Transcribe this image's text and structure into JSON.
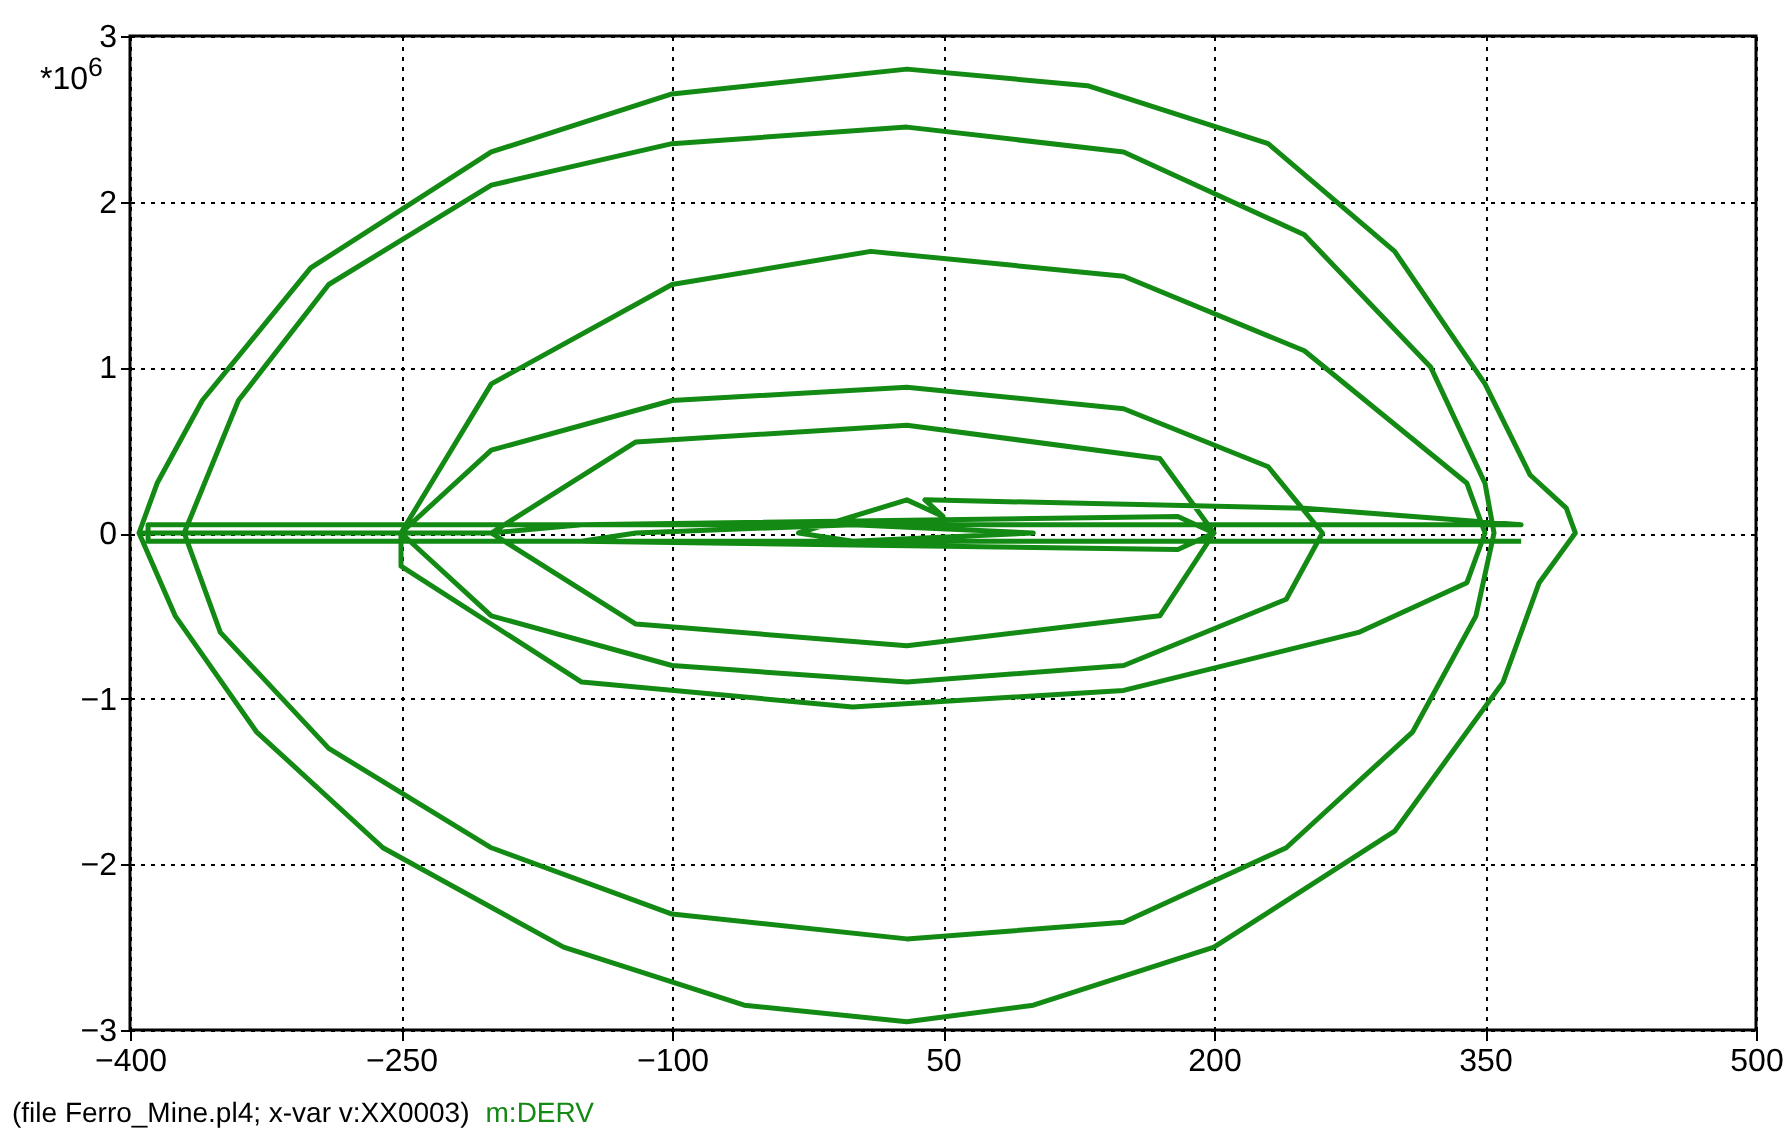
{
  "chart_data": {
    "type": "line",
    "annotations": [
      "*10$^{6}$",
      "(file Ferro_Mine.pl4; x-var v:XX0003)"
    ],
    "xlim": [
      -400,
      500
    ],
    "xticks": [
      -400,
      -250,
      -100,
      50,
      200,
      350,
      500
    ],
    "ylim": [
      -3,
      3
    ],
    "yticks": [
      -3,
      -2,
      -1,
      0,
      1,
      2,
      3
    ],
    "grid": true,
    "line_style": "solid",
    "legend": "bottom left",
    "series": [
      {
        "name": "m:DERV",
        "color": "#138a13",
        "x": [
          -395,
          -385,
          -360,
          -300,
          -200,
          -100,
          30,
          130,
          230,
          300,
          350,
          375,
          395,
          400,
          380,
          360,
          300,
          200,
          100,
          30,
          -60,
          -160,
          -260,
          -330,
          -375,
          -395,
          -370,
          -340,
          -290,
          -200,
          -100,
          30,
          150,
          250,
          320,
          350,
          355,
          345,
          310,
          240,
          150,
          30,
          -100,
          -200,
          -290,
          -350,
          -370,
          -250,
          -200,
          -100,
          10,
          150,
          250,
          340,
          350,
          340,
          280,
          150,
          0,
          -150,
          -250,
          -250,
          -200,
          -100,
          30,
          150,
          230,
          260,
          240,
          150,
          30,
          -100,
          -200,
          -250,
          -200,
          -120,
          30,
          170,
          200,
          170,
          30,
          -120,
          -200,
          -150,
          180,
          200,
          180,
          -150,
          -120,
          0,
          100,
          0,
          -30,
          30,
          50,
          40,
          250,
          370,
          -390,
          -390,
          370
        ],
        "values": [
          0,
          0.3,
          0.8,
          1.6,
          2.3,
          2.65,
          2.8,
          2.7,
          2.35,
          1.7,
          0.9,
          0.35,
          0.15,
          0,
          -0.3,
          -0.9,
          -1.8,
          -2.5,
          -2.85,
          -2.95,
          -2.85,
          -2.5,
          -1.9,
          -1.2,
          -0.5,
          0,
          0,
          0.8,
          1.5,
          2.1,
          2.35,
          2.45,
          2.3,
          1.8,
          1,
          0.3,
          0,
          -0.5,
          -1.2,
          -1.9,
          -2.35,
          -2.45,
          -2.3,
          -1.9,
          -1.3,
          -0.6,
          0,
          0,
          0.9,
          1.5,
          1.7,
          1.55,
          1.1,
          0.3,
          0,
          -0.3,
          -0.6,
          -0.95,
          -1.05,
          -0.9,
          -0.2,
          0,
          0.5,
          0.8,
          0.88,
          0.75,
          0.4,
          0,
          -0.4,
          -0.8,
          -0.9,
          -0.8,
          -0.5,
          0,
          0,
          0.55,
          0.65,
          0.45,
          0,
          -0.5,
          -0.68,
          -0.55,
          0,
          0.05,
          0.1,
          0,
          -0.1,
          -0.05,
          0,
          0.05,
          0,
          -0.05,
          0,
          0.2,
          0.1,
          0.2,
          0.15,
          0.05,
          0.05,
          -0.05,
          -0.05
        ]
      }
    ]
  }
}
